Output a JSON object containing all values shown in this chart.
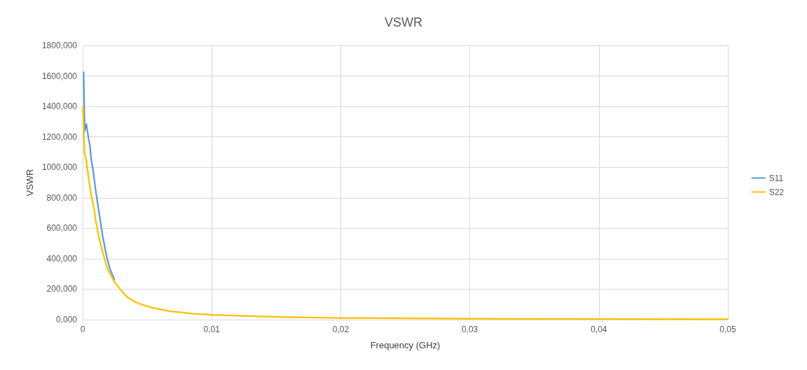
{
  "chart_data": {
    "type": "line",
    "title": "VSWR",
    "xlabel": "Frequency (GHz)",
    "ylabel": "VSWR",
    "xlim": [
      0,
      0.05
    ],
    "xticks": [
      {
        "value": 0,
        "label": "0"
      },
      {
        "value": 0.01,
        "label": "0,01"
      },
      {
        "value": 0.02,
        "label": "0,02"
      },
      {
        "value": 0.03,
        "label": "0,03"
      },
      {
        "value": 0.04,
        "label": "0,04"
      },
      {
        "value": 0.05,
        "label": "0,05"
      }
    ],
    "ylim": [
      0,
      1800
    ],
    "yticks": [
      {
        "value": 0,
        "label": "0,000"
      },
      {
        "value": 200,
        "label": "200,000"
      },
      {
        "value": 400,
        "label": "400,000"
      },
      {
        "value": 600,
        "label": "600,000"
      },
      {
        "value": 800,
        "label": "800,000"
      },
      {
        "value": 1000,
        "label": "1000,000"
      },
      {
        "value": 1200,
        "label": "1200,000"
      },
      {
        "value": 1400,
        "label": "1400,000"
      },
      {
        "value": 1600,
        "label": "1600,000"
      },
      {
        "value": 1800,
        "label": "1800,000"
      }
    ],
    "grid": true,
    "legend": "right",
    "line_style": "solid",
    "series": [
      {
        "name": "S11",
        "color": "#5b9bd5",
        "x": [
          7e-05,
          0.00016,
          0.00029,
          0.00045,
          0.00056,
          0.00065,
          0.00083,
          0.00101,
          0.00128,
          0.00155,
          0.00182,
          0.00209,
          0.00245
        ],
        "values": [
          1625,
          1236,
          1284,
          1191,
          1146,
          1057,
          967,
          848,
          697,
          549,
          428,
          339,
          264
        ]
      },
      {
        "name": "S22",
        "color": "#ffc000",
        "x": [
          2e-05,
          0.00014,
          0.00029,
          0.00047,
          0.00065,
          0.00083,
          0.00101,
          0.00128,
          0.00155,
          0.0019,
          0.00245,
          0.003,
          0.0035,
          0.0042,
          0.0053,
          0.0068,
          0.0085,
          0.01,
          0.015,
          0.02,
          0.03,
          0.04,
          0.05
        ],
        "values": [
          1400,
          1094,
          1042,
          922,
          818,
          758,
          652,
          533,
          443,
          339,
          249,
          190,
          145,
          110,
          80,
          55,
          40,
          32,
          18,
          11,
          6,
          4,
          3
        ]
      }
    ]
  }
}
